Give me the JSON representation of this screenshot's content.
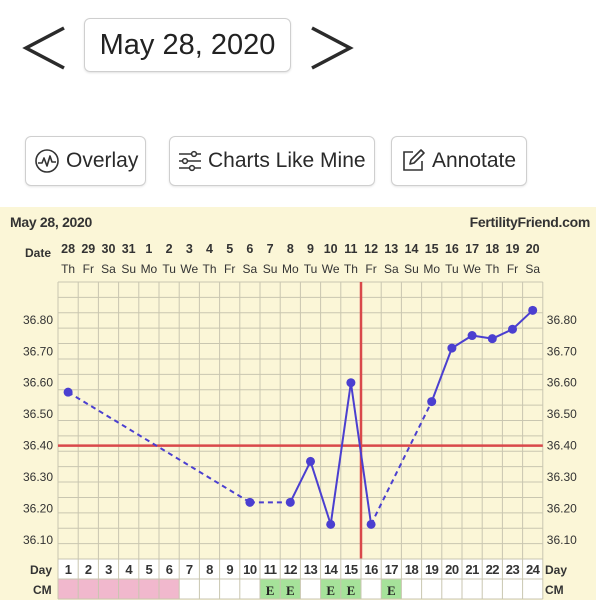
{
  "header": {
    "date": "May 28, 2020",
    "prev_icon": "chevron-left-icon",
    "next_icon": "chevron-right-icon"
  },
  "toolbar": {
    "overlay_label": "Overlay",
    "overlay_icon": "pulse-circle-icon",
    "charts_like_mine_label": "Charts Like Mine",
    "charts_like_mine_icon": "sliders-icon",
    "annotate_label": "Annotate",
    "annotate_icon": "edit-icon"
  },
  "chart_data": {
    "type": "line",
    "title": "May 28, 2020",
    "brand": "FertilityFriend.com",
    "row_labels": {
      "date": "Date",
      "day": "Day",
      "cm": "CM"
    },
    "dates": [
      "28",
      "29",
      "30",
      "31",
      "1",
      "2",
      "3",
      "4",
      "5",
      "6",
      "7",
      "8",
      "9",
      "10",
      "11",
      "12",
      "13",
      "14",
      "15",
      "16",
      "17",
      "18",
      "19",
      "20"
    ],
    "weekdays": [
      "Th",
      "Fr",
      "Sa",
      "Su",
      "Mo",
      "Tu",
      "We",
      "Th",
      "Fr",
      "Sa",
      "Su",
      "Mo",
      "Tu",
      "We",
      "Th",
      "Fr",
      "Sa",
      "Su",
      "Mo",
      "Tu",
      "We",
      "Th",
      "Fr",
      "Sa"
    ],
    "days": [
      1,
      2,
      3,
      4,
      5,
      6,
      7,
      8,
      9,
      10,
      11,
      12,
      13,
      14,
      15,
      16,
      17,
      18,
      19,
      20,
      21,
      22,
      23,
      24
    ],
    "temperatures": [
      36.57,
      null,
      null,
      null,
      null,
      null,
      null,
      null,
      null,
      36.22,
      null,
      36.22,
      36.35,
      36.15,
      36.6,
      36.15,
      null,
      null,
      36.54,
      36.71,
      36.75,
      36.74,
      36.77,
      36.83
    ],
    "connections": [
      {
        "from": 1,
        "to": 10,
        "style": "dashed"
      },
      {
        "from": 10,
        "to": 12,
        "style": "dashed"
      },
      {
        "from": 12,
        "to": 13,
        "style": "solid"
      },
      {
        "from": 13,
        "to": 14,
        "style": "solid"
      },
      {
        "from": 14,
        "to": 15,
        "style": "solid"
      },
      {
        "from": 15,
        "to": 16,
        "style": "solid"
      },
      {
        "from": 16,
        "to": 19,
        "style": "dashed"
      },
      {
        "from": 19,
        "to": 20,
        "style": "solid"
      },
      {
        "from": 20,
        "to": 21,
        "style": "solid"
      },
      {
        "from": 21,
        "to": 22,
        "style": "solid"
      },
      {
        "from": 22,
        "to": 23,
        "style": "solid"
      },
      {
        "from": 23,
        "to": 24,
        "style": "solid"
      }
    ],
    "yticks": [
      "36.80",
      "36.70",
      "36.60",
      "36.50",
      "36.40",
      "36.30",
      "36.20",
      "36.10"
    ],
    "ylim": [
      36.04,
      36.92
    ],
    "coverline": 36.4,
    "ovulation_day": 16,
    "cm": [
      {
        "day": 1,
        "code": "",
        "type": "pink"
      },
      {
        "day": 2,
        "code": "",
        "type": "pink"
      },
      {
        "day": 3,
        "code": "",
        "type": "pink"
      },
      {
        "day": 4,
        "code": "",
        "type": "pink"
      },
      {
        "day": 5,
        "code": "",
        "type": "pink"
      },
      {
        "day": 6,
        "code": "",
        "type": "pink"
      },
      {
        "day": 11,
        "code": "E",
        "type": "green"
      },
      {
        "day": 12,
        "code": "E",
        "type": "green"
      },
      {
        "day": 14,
        "code": "E",
        "type": "green"
      },
      {
        "day": 15,
        "code": "E",
        "type": "green"
      },
      {
        "day": 17,
        "code": "E",
        "type": "green"
      }
    ],
    "colors": {
      "background": "#fbf6d7",
      "grid": "#c9c6b0",
      "line": "#4b3fd0",
      "coverline": "#d9484a",
      "pink": "#f1b8cd",
      "green": "#a6e29a"
    }
  }
}
